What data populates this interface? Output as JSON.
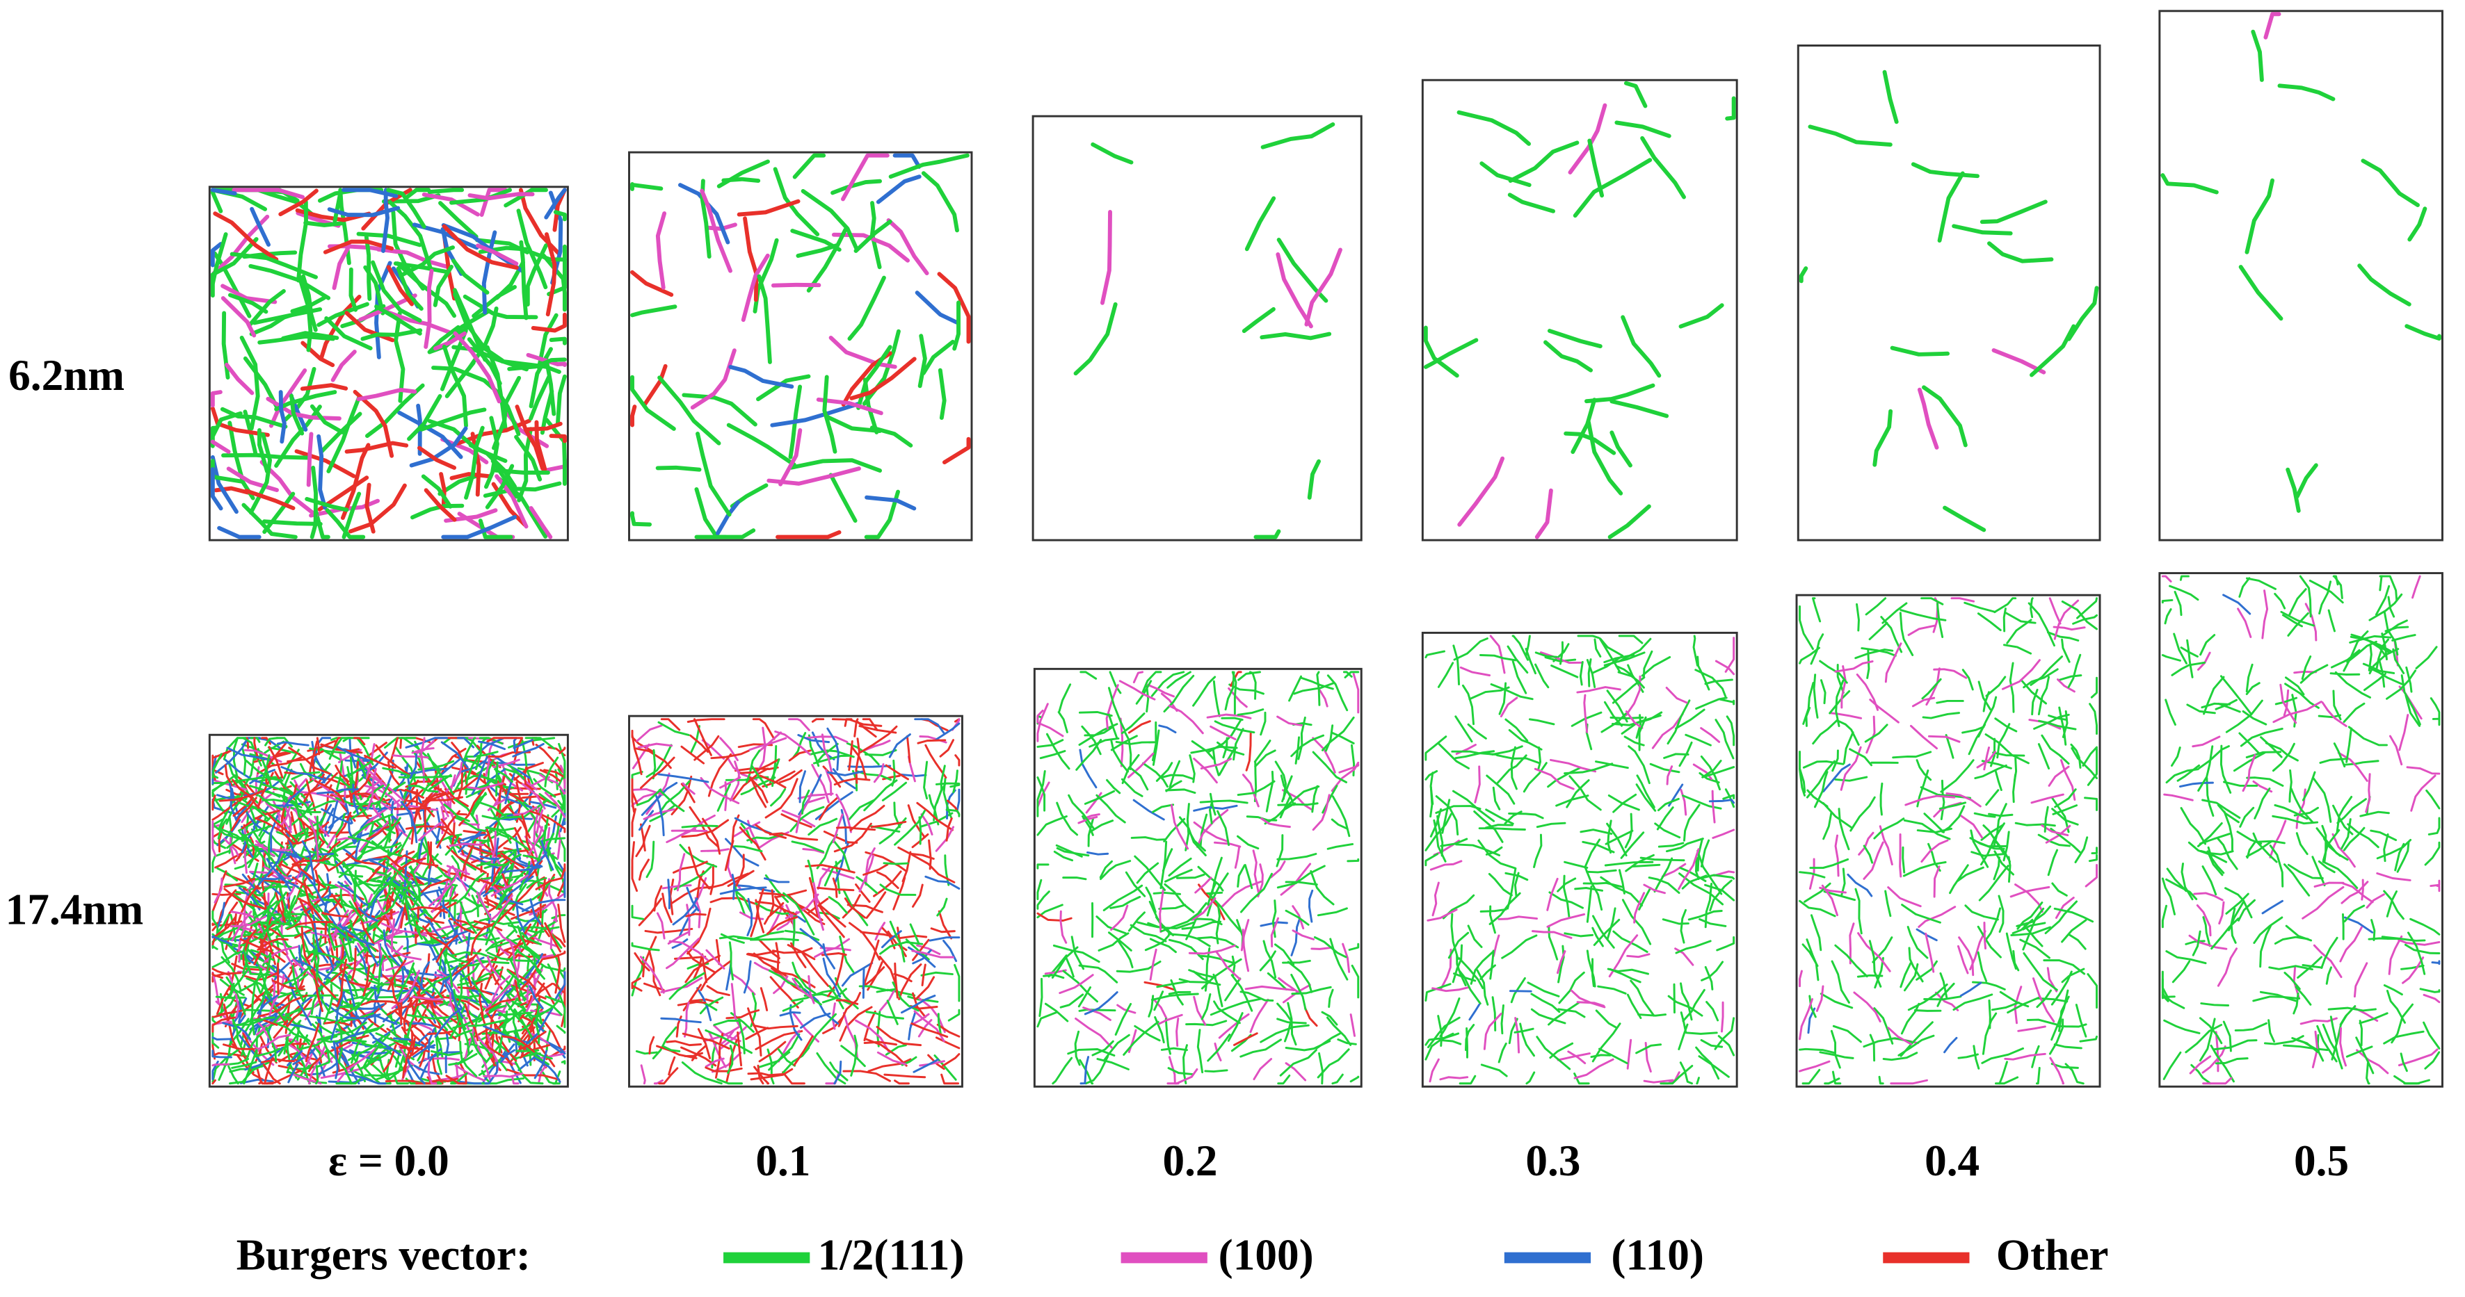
{
  "row_labels": [
    "6.2nm",
    "17.4nm"
  ],
  "column_labels": [
    "ε = 0.0",
    "0.1",
    "0.2",
    "0.3",
    "0.4",
    "0.5"
  ],
  "legend": {
    "title": "Burgers vector:",
    "entries": [
      {
        "label": "1/2(111)",
        "color": "#1fd13a"
      },
      {
        "label": "(100)",
        "color": "#e04fc0"
      },
      {
        "label": "(110)",
        "color": "#2f6fd0"
      },
      {
        "label": "Other",
        "color": "#e8302a"
      }
    ]
  }
}
